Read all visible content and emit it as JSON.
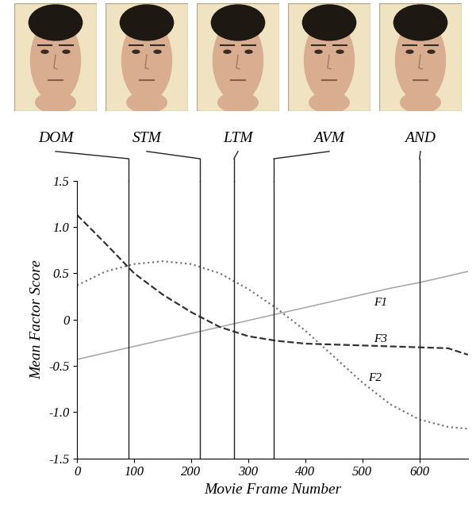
{
  "chart_data": {
    "type": "line",
    "xlabel": "Movie Frame Number",
    "ylabel": "Mean Factor Score",
    "x": [
      0,
      50,
      100,
      150,
      200,
      250,
      300,
      350,
      400,
      450,
      500,
      550,
      600,
      650,
      685
    ],
    "series": [
      {
        "name": "F1",
        "color": "#aaaaaa",
        "line_style": "solid",
        "values": [
          -0.43,
          -0.36,
          -0.29,
          -0.22,
          -0.15,
          -0.08,
          -0.01,
          0.06,
          0.13,
          0.2,
          0.27,
          0.34,
          0.4,
          0.47,
          0.52
        ]
      },
      {
        "name": "F2",
        "color": "#777777",
        "line_style": "dotted",
        "values": [
          0.37,
          0.52,
          0.6,
          0.63,
          0.6,
          0.5,
          0.33,
          0.12,
          -0.12,
          -0.4,
          -0.68,
          -0.92,
          -1.08,
          -1.16,
          -1.18
        ]
      },
      {
        "name": "F3",
        "color": "#333333",
        "line_style": "dashed",
        "values": [
          1.13,
          0.82,
          0.5,
          0.27,
          0.08,
          -0.08,
          -0.18,
          -0.23,
          -0.26,
          -0.27,
          -0.28,
          -0.29,
          -0.3,
          -0.31,
          -0.38
        ]
      }
    ],
    "markers": [
      {
        "label": "DOM",
        "x": 90
      },
      {
        "label": "STM",
        "x": 215
      },
      {
        "label": "LTM",
        "x": 275
      },
      {
        "label": "AVM",
        "x": 345
      },
      {
        "label": "AND",
        "x": 600
      }
    ],
    "xlim": [
      0,
      685
    ],
    "xticks": [
      0,
      100,
      200,
      300,
      400,
      500,
      600
    ],
    "ylim": [
      -1.5,
      1.5
    ],
    "yticks": [
      -1.5,
      -1.0,
      -0.5,
      0,
      0.5,
      1.0,
      1.5
    ],
    "grid": false
  }
}
